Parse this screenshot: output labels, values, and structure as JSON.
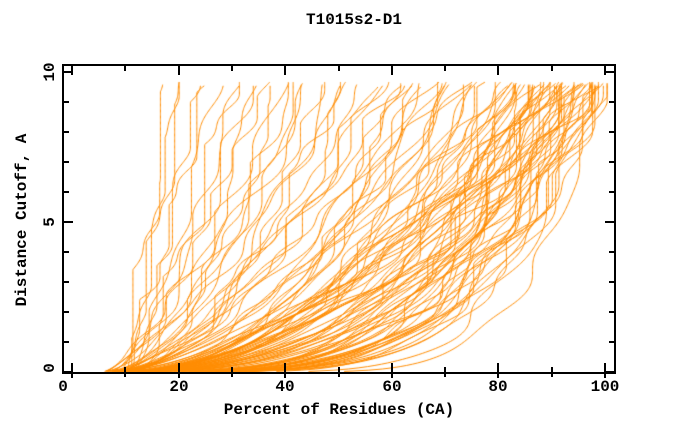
{
  "title": "T1015s2-D1",
  "x_axis": {
    "label": "Percent of Residues (CA)",
    "major_ticks": [
      0,
      20,
      40,
      60,
      80,
      100
    ],
    "minor_ticks": [
      10,
      30,
      50,
      70,
      90
    ],
    "tick_labels": [
      "0",
      "20",
      "40",
      "60",
      "80",
      "100"
    ]
  },
  "y_axis": {
    "label": "Distance Cutoff, A",
    "major_ticks": [
      0,
      5,
      10
    ],
    "minor_ticks": [
      1,
      2,
      3,
      4,
      6,
      7,
      8,
      9
    ],
    "tick_labels": [
      "0",
      "5",
      "10"
    ]
  },
  "colors": {
    "curve": "#ff8c00",
    "axis": "#000000",
    "background": "#ffffff",
    "text": "#000000"
  },
  "chart_data": {
    "type": "line",
    "title": "T1015s2-D1",
    "xlabel": "Percent of Residues (CA)",
    "ylabel": "Distance Cutoff, A",
    "xlim": [
      0,
      100
    ],
    "ylim": [
      0,
      10
    ],
    "grid": false,
    "legend": "none",
    "frame": "full-box with inward tick marks",
    "series_color": "#ff8c00",
    "description": "Cumulative GDT-style curves: one monotone step curve per model, percent of CA residues (x) under each distance cutoff (y). Curves rise from x0 percent at cutoff 0 to x_top percent at cutoff ~9.7 A.",
    "curve_model": "x(y) = x0 + (x_top - x0) * (y/9.7)^p, monotone non-decreasing, small stepped wiggle",
    "curve_count": 109,
    "curves": [
      [
        10,
        17.5,
        0.95
      ],
      [
        11,
        19,
        1.05
      ],
      [
        9.5,
        21,
        0.85
      ],
      [
        12,
        23,
        0.9
      ],
      [
        10.5,
        25,
        1.0
      ],
      [
        11.5,
        27,
        0.8
      ],
      [
        13,
        29,
        0.9
      ],
      [
        6,
        31,
        0.55
      ],
      [
        7,
        33,
        0.6
      ],
      [
        8,
        35,
        0.5
      ],
      [
        5.5,
        36,
        0.65
      ],
      [
        9,
        38,
        0.45
      ],
      [
        6.5,
        40,
        0.7
      ],
      [
        7.5,
        41,
        0.55
      ],
      [
        8.5,
        43,
        0.6
      ],
      [
        5,
        44,
        0.5
      ],
      [
        6,
        46,
        0.75
      ],
      [
        7,
        47,
        0.45
      ],
      [
        9.5,
        49,
        0.6
      ],
      [
        8,
        50,
        0.52
      ],
      [
        5.5,
        52,
        0.68
      ],
      [
        6.5,
        53,
        0.48
      ],
      [
        7.5,
        55,
        0.62
      ],
      [
        9,
        56,
        0.55
      ],
      [
        5,
        58,
        0.5
      ],
      [
        8,
        59,
        0.65
      ],
      [
        6,
        61,
        0.58
      ],
      [
        7,
        62,
        0.42
      ],
      [
        5.5,
        63,
        0.55
      ],
      [
        8,
        64,
        0.38
      ],
      [
        6,
        65,
        0.5
      ],
      [
        9,
        66,
        0.45
      ],
      [
        7.5,
        67,
        0.6
      ],
      [
        5,
        68,
        0.4
      ],
      [
        6.5,
        69,
        0.52
      ],
      [
        8.5,
        70,
        0.35
      ],
      [
        7,
        71,
        0.48
      ],
      [
        5.5,
        72,
        0.55
      ],
      [
        9.5,
        73,
        0.4
      ],
      [
        6,
        74,
        0.5
      ],
      [
        8,
        75,
        0.45
      ],
      [
        7,
        76,
        0.38
      ],
      [
        5,
        77,
        0.52
      ],
      [
        6.5,
        78,
        0.42
      ],
      [
        9,
        79,
        0.48
      ],
      [
        7.5,
        80,
        0.36
      ],
      [
        5.5,
        81,
        0.5
      ],
      [
        8.5,
        81.5,
        0.44
      ],
      [
        6,
        62.5,
        0.35
      ],
      [
        5,
        82,
        0.3
      ],
      [
        7,
        82.5,
        0.45
      ],
      [
        6,
        83,
        0.25
      ],
      [
        8.5,
        83.5,
        0.5
      ],
      [
        5.5,
        84,
        0.35
      ],
      [
        9,
        84.5,
        0.28
      ],
      [
        6.5,
        85,
        0.42
      ],
      [
        7.5,
        85.5,
        0.24
      ],
      [
        5,
        86,
        0.32
      ],
      [
        8,
        86.5,
        0.48
      ],
      [
        6,
        87,
        0.27
      ],
      [
        9.5,
        87.5,
        0.38
      ],
      [
        5.5,
        88,
        0.45
      ],
      [
        7,
        88.5,
        0.25
      ],
      [
        8,
        89,
        0.33
      ],
      [
        6.5,
        89.5,
        0.5
      ],
      [
        5,
        90,
        0.28
      ],
      [
        9,
        90.5,
        0.4
      ],
      [
        7.5,
        91,
        0.24
      ],
      [
        6,
        91.5,
        0.36
      ],
      [
        8.5,
        92,
        0.26
      ],
      [
        5.5,
        92.5,
        0.44
      ],
      [
        7,
        93,
        0.3
      ],
      [
        9.5,
        93.5,
        0.22
      ],
      [
        6.5,
        94,
        0.38
      ],
      [
        5,
        94.5,
        0.27
      ],
      [
        8,
        95,
        0.33
      ],
      [
        7.5,
        95.5,
        0.23
      ],
      [
        6,
        96,
        0.42
      ],
      [
        9,
        96.5,
        0.26
      ],
      [
        5.5,
        97,
        0.35
      ],
      [
        7,
        97.5,
        0.24
      ],
      [
        8.5,
        98,
        0.3
      ],
      [
        6.5,
        98.5,
        0.22
      ],
      [
        5,
        99,
        0.4
      ],
      [
        9.5,
        99,
        0.26
      ],
      [
        7.5,
        99.5,
        0.32
      ],
      [
        6,
        100,
        0.22
      ],
      [
        8,
        100,
        0.28
      ],
      [
        5.5,
        100,
        0.36
      ],
      [
        10,
        84,
        0.55
      ],
      [
        11,
        86,
        0.5
      ],
      [
        10.5,
        88,
        0.58
      ],
      [
        12,
        90,
        0.52
      ],
      [
        11.5,
        92,
        0.6
      ],
      [
        10,
        94,
        0.48
      ],
      [
        12.5,
        96,
        0.55
      ],
      [
        11,
        98,
        0.45
      ],
      [
        4.8,
        85,
        0.2
      ],
      [
        4.5,
        89,
        0.21
      ],
      [
        4.6,
        93,
        0.2
      ],
      [
        4.9,
        97,
        0.19
      ],
      [
        5.2,
        99.5,
        0.2
      ],
      [
        13,
        95,
        0.62
      ],
      [
        14,
        99,
        0.58
      ],
      [
        16,
        88,
        0.3
      ],
      [
        20,
        92,
        0.28
      ],
      [
        24,
        95,
        0.26
      ],
      [
        29,
        98,
        0.24
      ],
      [
        34,
        100,
        0.22
      ]
    ]
  }
}
